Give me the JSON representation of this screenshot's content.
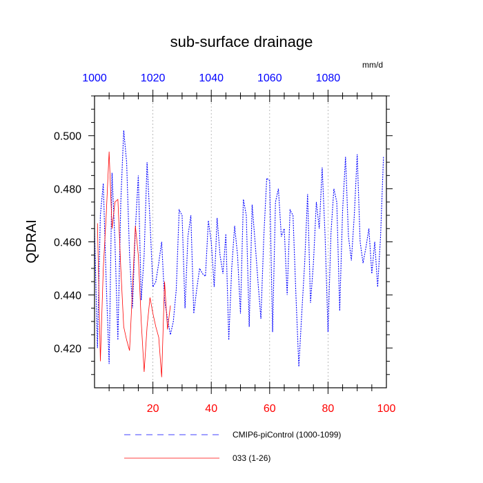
{
  "chart_data": {
    "type": "line",
    "title": "sub-surface drainage",
    "units": "mm/d",
    "ylabel": "QDRAI",
    "xlim": [
      0,
      100
    ],
    "ylim": [
      0.405,
      0.515
    ],
    "x_top_range": [
      1000,
      1100
    ],
    "x_bottom_ticks": [
      20,
      40,
      60,
      80,
      100
    ],
    "x_top_ticks": [
      1000,
      1020,
      1040,
      1060,
      1080
    ],
    "y_ticks": [
      0.42,
      0.44,
      0.46,
      0.48,
      0.5
    ],
    "y_tick_labels": [
      "0.420",
      "0.440",
      "0.460",
      "0.480",
      "0.500"
    ],
    "grid": "vertical dashed at major x ticks",
    "axis_colors": {
      "bottom": "#ff0000",
      "top": "#0000ff"
    },
    "legend": {
      "placement": "bottom",
      "entries": [
        {
          "label": "CMIP6-piControl (1000-1099)",
          "color": "#0000ff",
          "style": "dashed"
        },
        {
          "label": "033 (1-26)",
          "color": "#ff0000",
          "style": "solid"
        }
      ]
    },
    "series": [
      {
        "name": "CMIP6-piControl (1000-1099)",
        "color": "#0000ff",
        "axis": "top",
        "x": [
          1000,
          1001,
          1002,
          1003,
          1004,
          1005,
          1006,
          1007,
          1008,
          1009,
          1010,
          1011,
          1012,
          1013,
          1014,
          1015,
          1016,
          1017,
          1018,
          1019,
          1020,
          1021,
          1022,
          1023,
          1024,
          1025,
          1026,
          1027,
          1028,
          1029,
          1030,
          1031,
          1032,
          1033,
          1034,
          1035,
          1036,
          1037,
          1038,
          1039,
          1040,
          1041,
          1042,
          1043,
          1044,
          1045,
          1046,
          1047,
          1048,
          1049,
          1050,
          1051,
          1052,
          1053,
          1054,
          1055,
          1056,
          1057,
          1058,
          1059,
          1060,
          1061,
          1062,
          1063,
          1064,
          1065,
          1066,
          1067,
          1068,
          1069,
          1070,
          1071,
          1072,
          1073,
          1074,
          1075,
          1076,
          1077,
          1078,
          1079,
          1080,
          1081,
          1082,
          1083,
          1084,
          1085,
          1086,
          1087,
          1088,
          1089,
          1090,
          1091,
          1092,
          1093,
          1094,
          1095,
          1096,
          1097,
          1098,
          1099
        ],
        "values": [
          0.465,
          0.42,
          0.47,
          0.482,
          0.445,
          0.414,
          0.486,
          0.46,
          0.423,
          0.475,
          0.502,
          0.49,
          0.455,
          0.435,
          0.465,
          0.485,
          0.438,
          0.455,
          0.49,
          0.468,
          0.443,
          0.445,
          0.452,
          0.46,
          0.438,
          0.431,
          0.425,
          0.43,
          0.442,
          0.472,
          0.47,
          0.435,
          0.462,
          0.47,
          0.433,
          0.442,
          0.45,
          0.448,
          0.447,
          0.468,
          0.46,
          0.443,
          0.469,
          0.455,
          0.448,
          0.463,
          0.423,
          0.45,
          0.466,
          0.455,
          0.433,
          0.476,
          0.47,
          0.428,
          0.474,
          0.46,
          0.445,
          0.431,
          0.462,
          0.484,
          0.483,
          0.426,
          0.475,
          0.48,
          0.462,
          0.465,
          0.44,
          0.472,
          0.47,
          0.44,
          0.413,
          0.433,
          0.452,
          0.478,
          0.437,
          0.452,
          0.475,
          0.465,
          0.488,
          0.462,
          0.426,
          0.463,
          0.48,
          0.475,
          0.434,
          0.472,
          0.492,
          0.462,
          0.453,
          0.47,
          0.493,
          0.46,
          0.452,
          0.458,
          0.465,
          0.448,
          0.46,
          0.443,
          0.462,
          0.492
        ]
      },
      {
        "name": "033 (1-26)",
        "color": "#ff0000",
        "axis": "bottom",
        "x": [
          1,
          2,
          3,
          4,
          5,
          6,
          7,
          8,
          9,
          10,
          11,
          12,
          13,
          14,
          15,
          16,
          17,
          18,
          19,
          20,
          21,
          22,
          23,
          24,
          25,
          26
        ],
        "values": [
          0.467,
          0.415,
          0.45,
          0.47,
          0.494,
          0.465,
          0.475,
          0.476,
          0.45,
          0.428,
          0.423,
          0.419,
          0.442,
          0.466,
          0.455,
          0.43,
          0.411,
          0.428,
          0.439,
          0.433,
          0.428,
          0.424,
          0.409,
          0.445,
          0.427,
          0.436
        ]
      }
    ]
  }
}
